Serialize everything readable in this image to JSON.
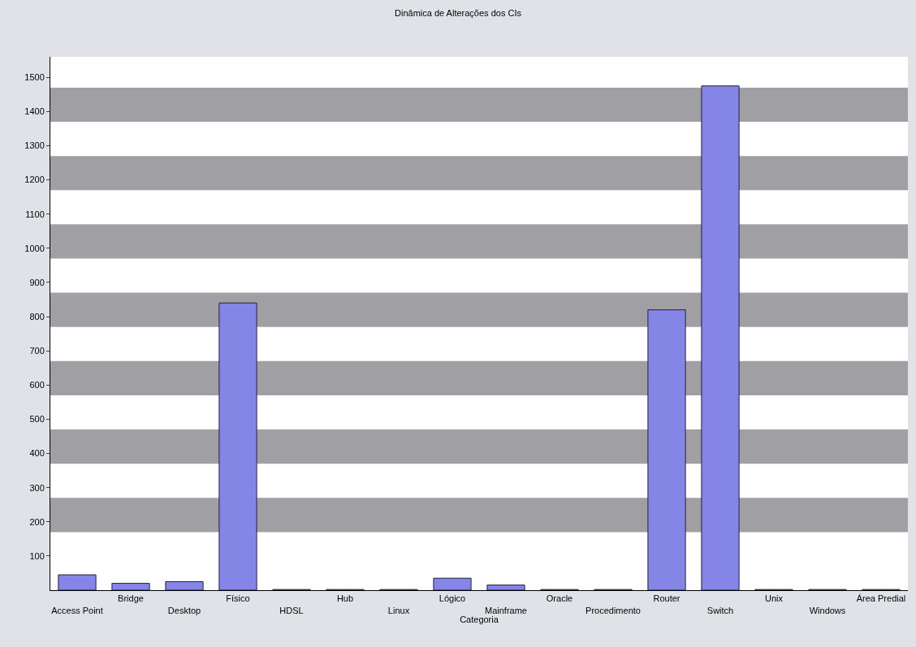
{
  "chart_data": {
    "type": "bar",
    "title": "Dinâmica de Alterações dos CIs",
    "xlabel": "Categoria",
    "categories": [
      "Access Point",
      "Bridge",
      "Desktop",
      "Físico",
      "HDSL",
      "Hub",
      "Linux",
      "Lógico",
      "Mainframe",
      "Oracle",
      "Procedimento",
      "Router",
      "Switch",
      "Unix",
      "Windows",
      "Área Predial"
    ],
    "values": [
      45,
      20,
      25,
      840,
      2,
      2,
      2,
      35,
      15,
      2,
      2,
      820,
      1475,
      2,
      2,
      2
    ],
    "color": "#8585e6",
    "ylim": [
      0,
      1560
    ],
    "yticks": [
      100,
      200,
      300,
      400,
      500,
      600,
      700,
      800,
      900,
      1000,
      1100,
      1200,
      1300,
      1400,
      1500
    ],
    "bands": [
      {
        "axis": "y",
        "from": 170,
        "to": 270,
        "color": "#a0a0a4"
      },
      {
        "axis": "y",
        "from": 370,
        "to": 470,
        "color": "#a0a0a4"
      },
      {
        "axis": "y",
        "from": 570,
        "to": 670,
        "color": "#a0a0a4"
      },
      {
        "axis": "y",
        "from": 770,
        "to": 870,
        "color": "#a0a0a4"
      },
      {
        "axis": "y",
        "from": 970,
        "to": 1070,
        "color": "#a0a0a4"
      },
      {
        "axis": "y",
        "from": 1170,
        "to": 1270,
        "color": "#a0a0a4"
      },
      {
        "axis": "y",
        "from": 1370,
        "to": 1470,
        "color": "#a0a0a4"
      }
    ]
  }
}
